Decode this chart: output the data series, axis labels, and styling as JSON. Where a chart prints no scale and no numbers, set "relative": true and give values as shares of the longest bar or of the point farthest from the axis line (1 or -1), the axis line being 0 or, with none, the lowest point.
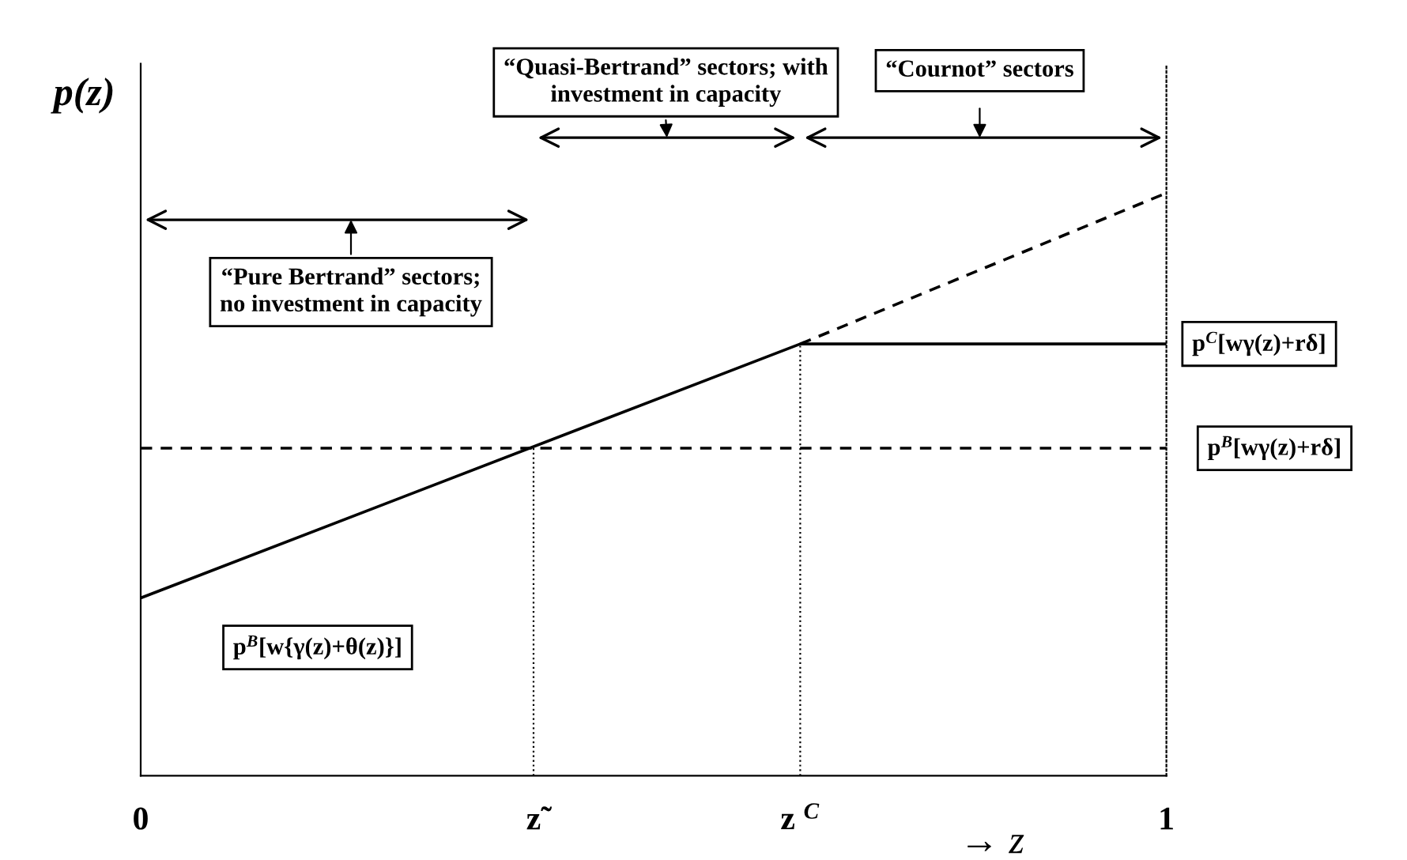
{
  "chart_data": {
    "type": "line",
    "relative": true,
    "ylabel": "p(z)",
    "xlabel": "→ z",
    "xlim": [
      0,
      1
    ],
    "xticks": [
      0,
      {
        "value": 0.383,
        "label": "z̃"
      },
      {
        "value": 0.643,
        "label": "z $^{C}$"
      },
      1
    ],
    "series": [
      {
        "color": "#000000",
        "line_style": "solid",
        "x": [
          0,
          0.643,
          1
        ],
        "values": [
          0.305,
          0.741,
          0.741
        ]
      },
      {
        "color": "#000000",
        "line_style": "dashed",
        "x": [
          0.643,
          1
        ],
        "values": [
          0.741,
          1.0
        ]
      },
      {
        "color": "#000000",
        "line_style": "dashed",
        "x": [
          0,
          1
        ],
        "values": [
          0.562,
          0.562
        ]
      }
    ],
    "ref_lines": [
      {
        "axis": "x",
        "value": 0.383,
        "line_style": "dotted",
        "color": "#000000"
      },
      {
        "axis": "x",
        "value": 0.643,
        "line_style": "dotted",
        "color": "#000000"
      }
    ],
    "annotations": [
      "“Pure Bertrand” sectors;\nno investment in capacity",
      "“Quasi-Bertrand” sectors; with\ninvestment in capacity",
      "“Cournot” sectors",
      "p$^{B}$[w{γ(z)+θ(z)}]",
      "p$^{C}$[wγ(z)+rδ]",
      "p$^{B}$[wγ(z)+rδ]"
    ],
    "grid": false,
    "marker": "none"
  }
}
